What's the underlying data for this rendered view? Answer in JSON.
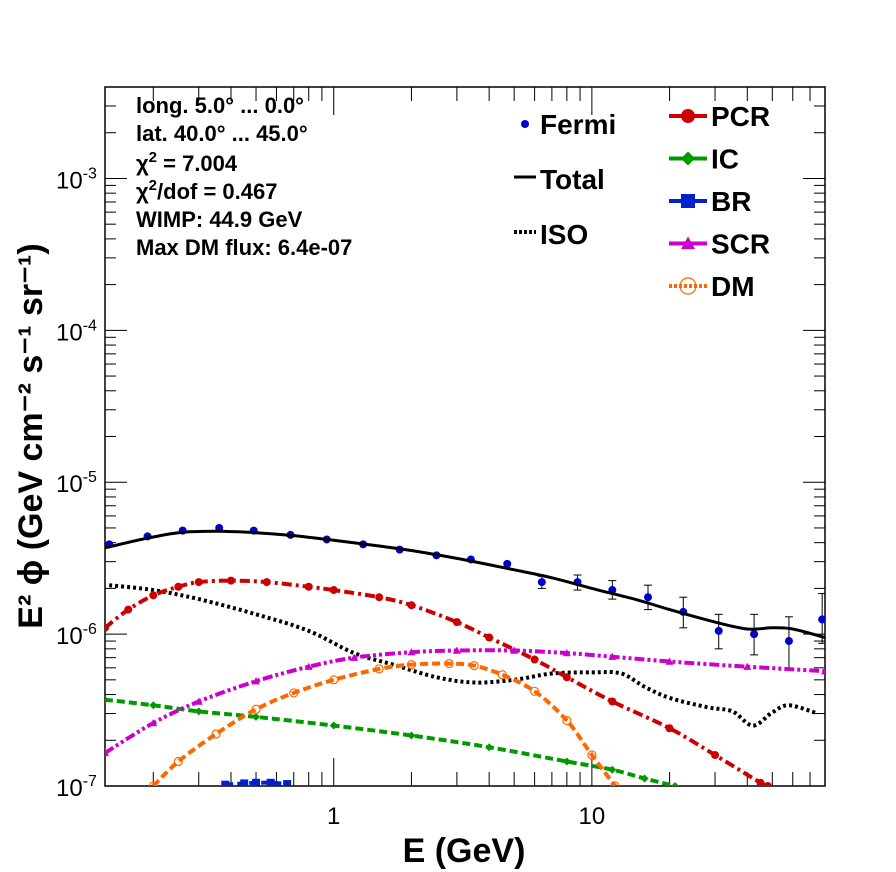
{
  "chart_data": {
    "type": "scatter",
    "title": "",
    "xlabel": "E (GeV)",
    "ylabel": "E² ϕ (GeV cm⁻² s⁻¹ sr⁻¹)",
    "xscale": "log",
    "yscale": "log",
    "xlim": [
      0.13,
      80
    ],
    "ylim": [
      1e-07,
      0.004
    ],
    "x_ticks": [
      {
        "value": 1,
        "label": "1"
      },
      {
        "value": 10,
        "label": "10"
      }
    ],
    "y_ticks": [
      {
        "value": 1e-07,
        "base": "10",
        "exp": "-7"
      },
      {
        "value": 1e-06,
        "base": "10",
        "exp": "-6"
      },
      {
        "value": 1e-05,
        "base": "10",
        "exp": "-5"
      },
      {
        "value": 0.0001,
        "base": "10",
        "exp": "-4"
      },
      {
        "value": 0.001,
        "base": "10",
        "exp": "-3"
      }
    ],
    "grid": false,
    "annotations": {
      "long": "long. 5.0° ... 0.0°",
      "lat": "lat. 40.0° ... 45.0°",
      "chi2_prefix": "χ",
      "chi2_sup": "2",
      "chi2_value": " = 7.004",
      "chi2dof_sup": "2",
      "chi2dof_value": "/dof = 0.467",
      "wimp": "WIMP: 44.9 GeV",
      "dmflux": "Max DM flux: 6.4e-07"
    },
    "legend_left": [
      {
        "name": "Fermi",
        "style": "point",
        "color": "#0000cc"
      },
      {
        "name": "Total",
        "style": "solid",
        "color": "#000000"
      },
      {
        "name": "ISO",
        "style": "dotted",
        "color": "#000000"
      }
    ],
    "legend_right": [
      {
        "name": "PCR",
        "marker": "circle",
        "color": "#cc0000"
      },
      {
        "name": "IC",
        "marker": "diamond",
        "color": "#009900"
      },
      {
        "name": "BR",
        "marker": "square",
        "color": "#0022cc"
      },
      {
        "name": "SCR",
        "marker": "triangle",
        "color": "#cc00cc"
      },
      {
        "name": "DM",
        "marker": "open-circle",
        "color": "#ff6600"
      }
    ],
    "series": [
      {
        "key": "fermi",
        "type": "points",
        "color": "#0000cc",
        "points": [
          {
            "x": 0.135,
            "y": 3.9e-06
          },
          {
            "x": 0.19,
            "y": 4.4e-06
          },
          {
            "x": 0.26,
            "y": 4.8e-06
          },
          {
            "x": 0.36,
            "y": 5e-06
          },
          {
            "x": 0.49,
            "y": 4.8e-06
          },
          {
            "x": 0.68,
            "y": 4.5e-06
          },
          {
            "x": 0.94,
            "y": 4.2e-06
          },
          {
            "x": 1.3,
            "y": 3.9e-06
          },
          {
            "x": 1.8,
            "y": 3.6e-06
          },
          {
            "x": 2.5,
            "y": 3.3e-06
          },
          {
            "x": 3.4,
            "y": 3.1e-06
          },
          {
            "x": 4.7,
            "y": 2.9e-06
          },
          {
            "x": 6.4,
            "y": 2.2e-06,
            "err": [
              2e-06,
              2.4e-06
            ]
          },
          {
            "x": 8.8,
            "y": 2.2e-06,
            "err": [
              1.95e-06,
              2.45e-06
            ]
          },
          {
            "x": 12.0,
            "y": 1.95e-06,
            "err": [
              1.7e-06,
              2.25e-06
            ]
          },
          {
            "x": 16.5,
            "y": 1.75e-06,
            "err": [
              1.45e-06,
              2.1e-06
            ]
          },
          {
            "x": 22.6,
            "y": 1.4e-06,
            "err": [
              1.1e-06,
              1.75e-06
            ]
          },
          {
            "x": 31.0,
            "y": 1.05e-06,
            "err": [
              8e-07,
              1.35e-06
            ]
          },
          {
            "x": 42.5,
            "y": 1e-06,
            "err": [
              7.3e-07,
              1.35e-06
            ]
          },
          {
            "x": 58.0,
            "y": 9e-07,
            "err": [
              5.8e-07,
              1.3e-06
            ]
          },
          {
            "x": 78.0,
            "y": 1.25e-06,
            "err": [
              8.7e-07,
              1.85e-06
            ]
          }
        ]
      },
      {
        "key": "total",
        "type": "line",
        "style": "solid",
        "color": "#000000",
        "points": [
          {
            "x": 0.13,
            "y": 3.7e-06
          },
          {
            "x": 0.18,
            "y": 4.2e-06
          },
          {
            "x": 0.25,
            "y": 4.65e-06
          },
          {
            "x": 0.35,
            "y": 4.75e-06
          },
          {
            "x": 0.5,
            "y": 4.65e-06
          },
          {
            "x": 0.7,
            "y": 4.45e-06
          },
          {
            "x": 1.0,
            "y": 4.15e-06
          },
          {
            "x": 1.5,
            "y": 3.8e-06
          },
          {
            "x": 2.0,
            "y": 3.55e-06
          },
          {
            "x": 3.0,
            "y": 3.15e-06
          },
          {
            "x": 5.0,
            "y": 2.65e-06
          },
          {
            "x": 7.0,
            "y": 2.35e-06
          },
          {
            "x": 10.0,
            "y": 2e-06
          },
          {
            "x": 15.0,
            "y": 1.68e-06
          },
          {
            "x": 20.0,
            "y": 1.45e-06
          },
          {
            "x": 30.0,
            "y": 1.2e-06
          },
          {
            "x": 40.0,
            "y": 1.08e-06
          },
          {
            "x": 50.0,
            "y": 1.1e-06
          },
          {
            "x": 60.0,
            "y": 1.08e-06
          },
          {
            "x": 80.0,
            "y": 9.5e-07
          }
        ]
      },
      {
        "key": "iso",
        "type": "line",
        "style": "dotted",
        "color": "#000000",
        "points": [
          {
            "x": 0.135,
            "y": 2.1e-06
          },
          {
            "x": 0.2,
            "y": 1.95e-06
          },
          {
            "x": 0.3,
            "y": 1.7e-06
          },
          {
            "x": 0.5,
            "y": 1.35e-06
          },
          {
            "x": 0.8,
            "y": 1.05e-06
          },
          {
            "x": 1.2,
            "y": 7.5e-07
          },
          {
            "x": 1.7,
            "y": 6.3e-07
          },
          {
            "x": 2.5,
            "y": 5.2e-07
          },
          {
            "x": 3.5,
            "y": 4.8e-07
          },
          {
            "x": 5.0,
            "y": 5e-07
          },
          {
            "x": 7.0,
            "y": 5.5e-07
          },
          {
            "x": 10.0,
            "y": 5.6e-07
          },
          {
            "x": 13.0,
            "y": 5.5e-07
          },
          {
            "x": 16.0,
            "y": 4.5e-07
          },
          {
            "x": 20.0,
            "y": 3.8e-07
          },
          {
            "x": 28.0,
            "y": 3.3e-07
          },
          {
            "x": 35.0,
            "y": 3.1e-07
          },
          {
            "x": 42.0,
            "y": 2.5e-07
          },
          {
            "x": 50.0,
            "y": 3.05e-07
          },
          {
            "x": 58.0,
            "y": 3.4e-07
          },
          {
            "x": 75.0,
            "y": 3e-07
          }
        ]
      },
      {
        "key": "pcr",
        "type": "line",
        "style": "dash-dot",
        "marker": "circle",
        "color": "#cc0000",
        "points": [
          {
            "x": 0.13,
            "y": 1.1e-06
          },
          {
            "x": 0.16,
            "y": 1.45e-06
          },
          {
            "x": 0.2,
            "y": 1.8e-06
          },
          {
            "x": 0.25,
            "y": 2.05e-06
          },
          {
            "x": 0.3,
            "y": 2.2e-06
          },
          {
            "x": 0.4,
            "y": 2.25e-06
          },
          {
            "x": 0.55,
            "y": 2.2e-06
          },
          {
            "x": 0.8,
            "y": 2.05e-06
          },
          {
            "x": 1.0,
            "y": 1.95e-06
          },
          {
            "x": 1.5,
            "y": 1.75e-06
          },
          {
            "x": 2.0,
            "y": 1.55e-06
          },
          {
            "x": 3.0,
            "y": 1.2e-06
          },
          {
            "x": 4.0,
            "y": 9.5e-07
          },
          {
            "x": 6.0,
            "y": 6.8e-07
          },
          {
            "x": 8.0,
            "y": 5.2e-07
          },
          {
            "x": 12.0,
            "y": 3.6e-07
          },
          {
            "x": 20.0,
            "y": 2.4e-07
          },
          {
            "x": 30.0,
            "y": 1.6e-07
          },
          {
            "x": 45.0,
            "y": 1.05e-07
          },
          {
            "x": 48.0,
            "y": 1e-07
          }
        ]
      },
      {
        "key": "ic",
        "type": "line",
        "style": "dashed",
        "marker": "diamond",
        "color": "#009900",
        "points": [
          {
            "x": 0.13,
            "y": 3.7e-07
          },
          {
            "x": 0.2,
            "y": 3.4e-07
          },
          {
            "x": 0.3,
            "y": 3.1e-07
          },
          {
            "x": 0.5,
            "y": 2.85e-07
          },
          {
            "x": 1.0,
            "y": 2.5e-07
          },
          {
            "x": 2.0,
            "y": 2.15e-07
          },
          {
            "x": 4.0,
            "y": 1.8e-07
          },
          {
            "x": 8.0,
            "y": 1.45e-07
          },
          {
            "x": 12.0,
            "y": 1.28e-07
          },
          {
            "x": 16.0,
            "y": 1.12e-07
          },
          {
            "x": 21.0,
            "y": 1e-07
          }
        ]
      },
      {
        "key": "br",
        "type": "line",
        "style": "dashed",
        "marker": "square",
        "color": "#0022cc",
        "points": [
          {
            "x": 0.38,
            "y": 1.02e-07
          },
          {
            "x": 0.45,
            "y": 1.04e-07
          },
          {
            "x": 0.5,
            "y": 1.05e-07
          },
          {
            "x": 0.57,
            "y": 1.05e-07
          },
          {
            "x": 0.66,
            "y": 1.03e-07
          }
        ]
      },
      {
        "key": "scr",
        "type": "line",
        "style": "dash-dot-dot",
        "marker": "triangle",
        "color": "#cc00cc",
        "points": [
          {
            "x": 0.13,
            "y": 1.65e-07
          },
          {
            "x": 0.2,
            "y": 2.6e-07
          },
          {
            "x": 0.3,
            "y": 3.6e-07
          },
          {
            "x": 0.5,
            "y": 4.9e-07
          },
          {
            "x": 0.8,
            "y": 6.1e-07
          },
          {
            "x": 1.2,
            "y": 7e-07
          },
          {
            "x": 2.0,
            "y": 7.6e-07
          },
          {
            "x": 3.0,
            "y": 7.8e-07
          },
          {
            "x": 5.0,
            "y": 7.8e-07
          },
          {
            "x": 8.0,
            "y": 7.5e-07
          },
          {
            "x": 12.0,
            "y": 7.1e-07
          },
          {
            "x": 20.0,
            "y": 6.6e-07
          },
          {
            "x": 40.0,
            "y": 6.1e-07
          },
          {
            "x": 80.0,
            "y": 5.7e-07
          }
        ]
      },
      {
        "key": "dm",
        "type": "line",
        "style": "dashed",
        "marker": "open-circle",
        "color": "#ff6600",
        "points": [
          {
            "x": 0.2,
            "y": 1e-07
          },
          {
            "x": 0.25,
            "y": 1.45e-07
          },
          {
            "x": 0.35,
            "y": 2.2e-07
          },
          {
            "x": 0.5,
            "y": 3.2e-07
          },
          {
            "x": 0.7,
            "y": 4.1e-07
          },
          {
            "x": 1.0,
            "y": 5e-07
          },
          {
            "x": 1.5,
            "y": 5.9e-07
          },
          {
            "x": 2.0,
            "y": 6.3e-07
          },
          {
            "x": 2.8,
            "y": 6.4e-07
          },
          {
            "x": 3.5,
            "y": 6.2e-07
          },
          {
            "x": 4.5,
            "y": 5.4e-07
          },
          {
            "x": 6.0,
            "y": 4.2e-07
          },
          {
            "x": 8.0,
            "y": 2.7e-07
          },
          {
            "x": 10.0,
            "y": 1.6e-07
          },
          {
            "x": 12.3,
            "y": 1e-07
          }
        ]
      }
    ]
  }
}
